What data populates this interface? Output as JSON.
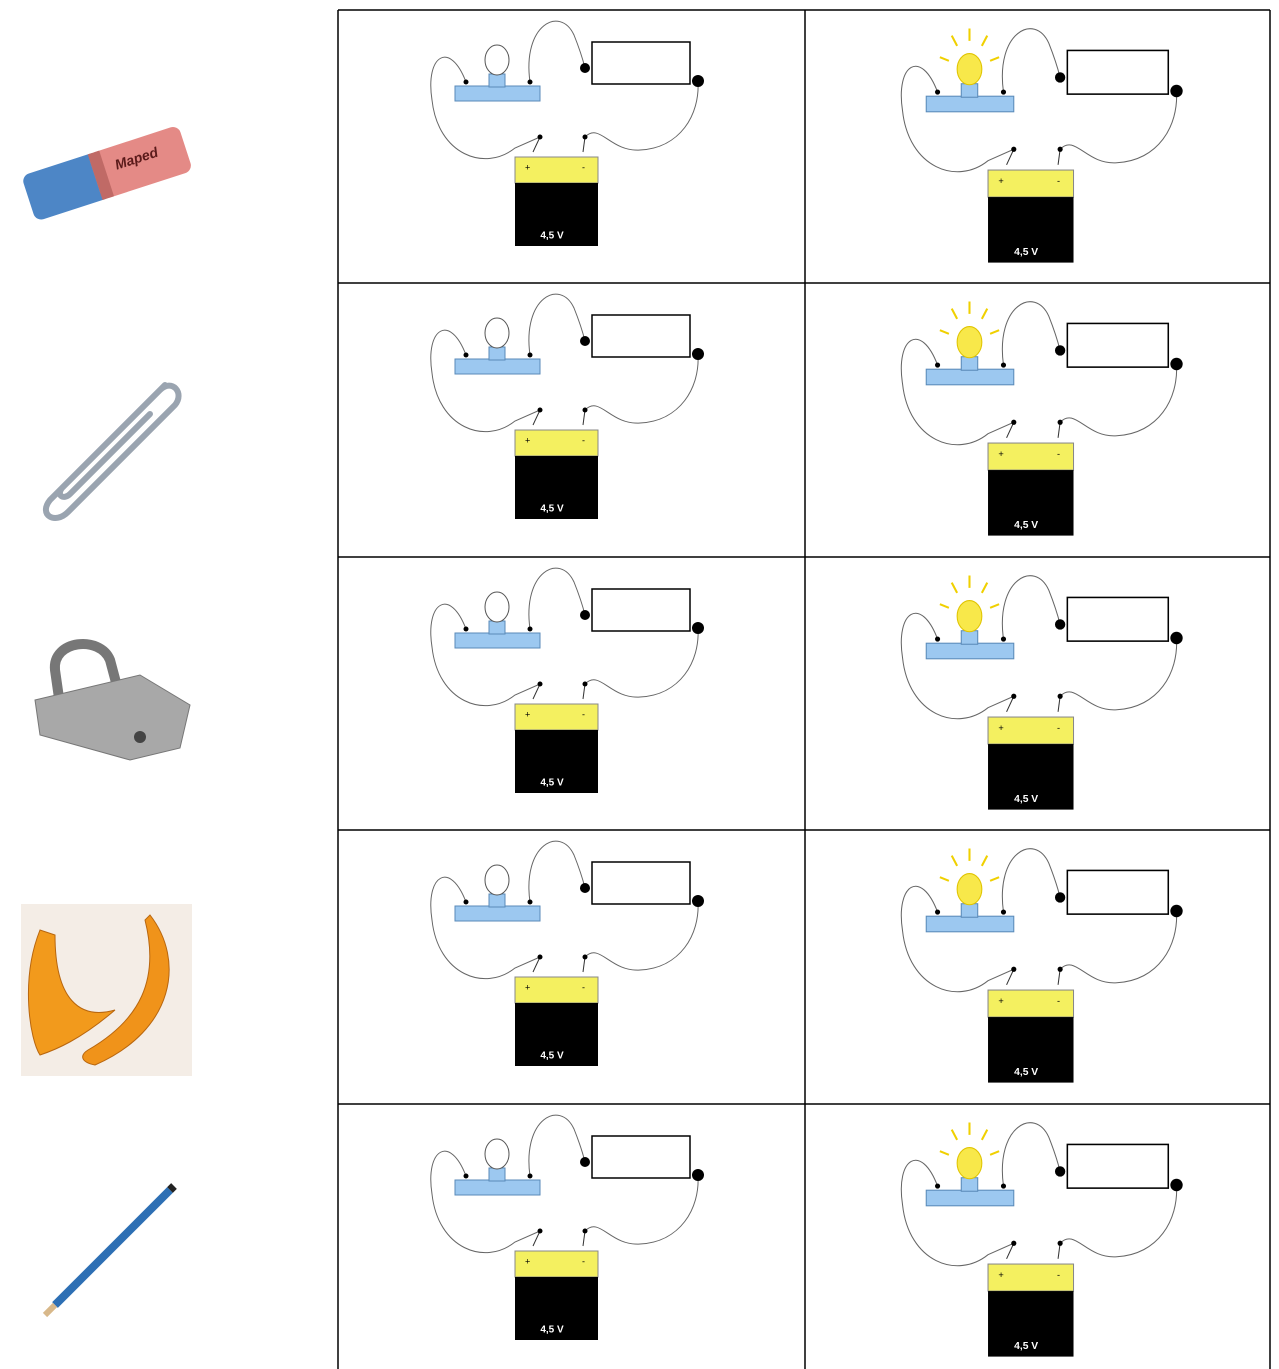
{
  "eraser_brand": "Maped",
  "rows": [
    {
      "circuits": [
        {
          "plus": "+",
          "minus": "-",
          "battery": "4,5 V"
        },
        {
          "plus": "+",
          "minus": "-",
          "battery": "4,5 V"
        }
      ]
    },
    {
      "circuits": [
        {
          "plus": "+",
          "minus": "-",
          "battery": "4,5 V"
        },
        {
          "plus": "+",
          "minus": "-",
          "battery": "4,5 V"
        }
      ]
    },
    {
      "circuits": [
        {
          "plus": "+",
          "minus": "-",
          "battery": "4,5 V"
        },
        {
          "plus": "+",
          "minus": "-",
          "battery": "4,5 V"
        }
      ]
    },
    {
      "circuits": [
        {
          "plus": "+",
          "minus": "-",
          "battery": "4,5 V"
        },
        {
          "plus": "+",
          "minus": "-",
          "battery": "4,5 V"
        }
      ]
    },
    {
      "circuits": [
        {
          "plus": "+",
          "minus": "-",
          "battery": "4,5 V"
        },
        {
          "plus": "+",
          "minus": "-",
          "battery": "4,5 V"
        }
      ]
    }
  ]
}
